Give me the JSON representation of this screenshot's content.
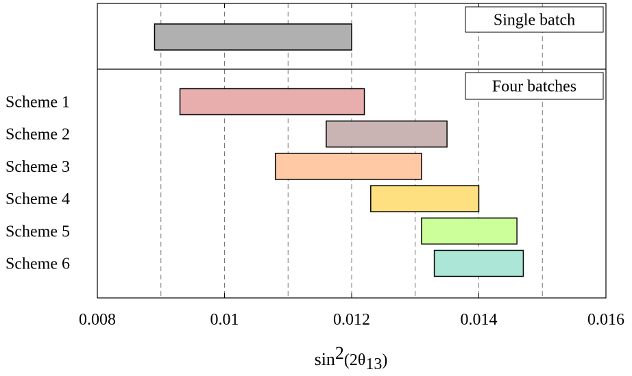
{
  "chart_data": {
    "type": "bar",
    "orientation": "horizontal-range",
    "xlabel": {
      "base": "sin",
      "sup": "2",
      "paren_open": "(2θ",
      "sub": "13",
      "paren_close": ")"
    },
    "xlim": [
      0.008,
      0.016
    ],
    "x_ticks": [
      0.008,
      0.01,
      0.012,
      0.014,
      0.016
    ],
    "x_tick_labels": [
      "0.008",
      "0.01",
      "0.012",
      "0.014",
      "0.016"
    ],
    "grid_x": [
      0.009,
      0.01,
      0.011,
      0.012,
      0.013,
      0.014,
      0.015
    ],
    "panels": [
      {
        "label": "Single batch",
        "ranges": [
          {
            "category": "",
            "low": 0.0089,
            "high": 0.012,
            "color": "#b0b0b0"
          }
        ]
      },
      {
        "label": "Four batches",
        "ranges": [
          {
            "category": "Scheme 1",
            "low": 0.0093,
            "high": 0.0122,
            "color": "#e8aeae"
          },
          {
            "category": "Scheme 2",
            "low": 0.0116,
            "high": 0.0135,
            "color": "#c9b4b3"
          },
          {
            "category": "Scheme 3",
            "low": 0.0108,
            "high": 0.0131,
            "color": "#ffc9a6"
          },
          {
            "category": "Scheme 4",
            "low": 0.0123,
            "high": 0.014,
            "color": "#ffe081"
          },
          {
            "category": "Scheme 5",
            "low": 0.0131,
            "high": 0.0146,
            "color": "#ccff99"
          },
          {
            "category": "Scheme 6",
            "low": 0.0133,
            "high": 0.0147,
            "color": "#abe6d6"
          }
        ]
      }
    ]
  }
}
